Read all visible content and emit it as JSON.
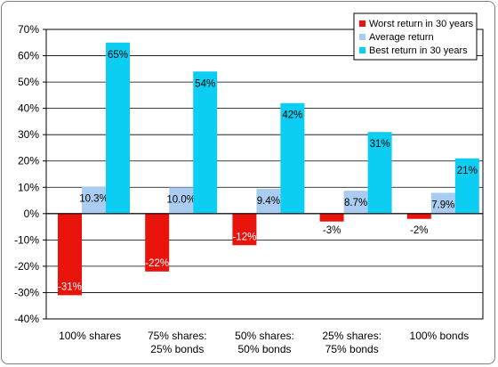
{
  "chart_data": {
    "type": "bar",
    "title": "",
    "xlabel": "",
    "ylabel": "",
    "ylim": [
      -40,
      70
    ],
    "yticks": [
      "70%",
      "60%",
      "50%",
      "40%",
      "30%",
      "20%",
      "10%",
      "0%",
      "-10%",
      "-20%",
      "-30%",
      "-40%"
    ],
    "grid": true,
    "legend_position": "top-right",
    "categories": [
      [
        "100% shares"
      ],
      [
        "75% shares:",
        "25% bonds"
      ],
      [
        "50% shares:",
        "50% bonds"
      ],
      [
        "25% shares:",
        "75% bonds"
      ],
      [
        "100% bonds"
      ]
    ],
    "series": [
      {
        "name": "Worst return in 30 years",
        "color": "#e8140c",
        "values": [
          -31,
          -22,
          -12,
          -3,
          -2
        ],
        "labels": [
          "-31%",
          "-22%",
          "-12%",
          "-3%",
          "-2%"
        ]
      },
      {
        "name": "Average return",
        "color": "#a9ccf0",
        "values": [
          10.3,
          10.0,
          9.4,
          8.7,
          7.9
        ],
        "labels": [
          "10.3%",
          "10.0%",
          "9.4%",
          "8.7%",
          "7.9%"
        ]
      },
      {
        "name": "Best return in 30 years",
        "color": "#0ccdf2",
        "values": [
          65,
          54,
          42,
          31,
          21
        ],
        "labels": [
          "65%",
          "54%",
          "42%",
          "31%",
          "21%"
        ]
      }
    ]
  }
}
